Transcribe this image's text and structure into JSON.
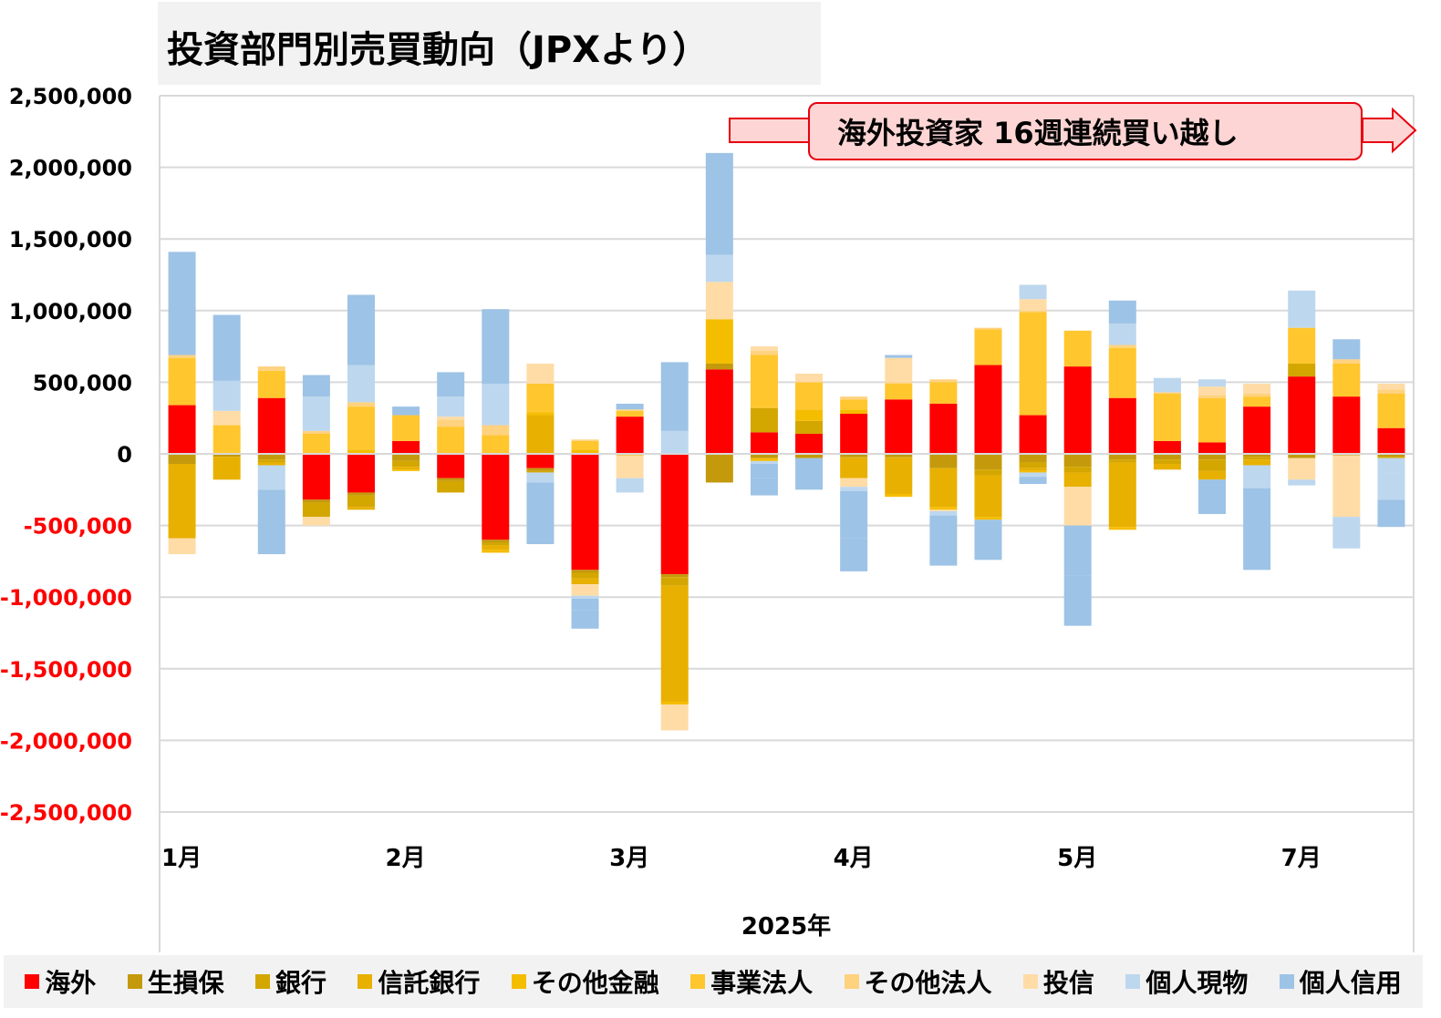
{
  "title": "投資部門別売買動向（JPXより）",
  "callout": "海外投資家 16週連続買い越し",
  "chart_data": {
    "type": "bar",
    "stacked": true,
    "xlabel": "2025年",
    "ylabel": "",
    "ylim": [
      -2500000,
      2500000
    ],
    "y_ticks": [
      "2,500,000",
      "2,000,000",
      "1,500,000",
      "1,000,000",
      "500,000",
      "0",
      "-500,000",
      "-1,000,000",
      "-1,500,000",
      "-2,000,000",
      "-2,500,000"
    ],
    "y_tick_values": [
      2500000,
      2000000,
      1500000,
      1000000,
      500000,
      0,
      -500000,
      -1000000,
      -1500000,
      -2000000,
      -2500000
    ],
    "negative_tick_color": "#ff0000",
    "grid": true,
    "legend_position": "bottom",
    "month_labels": [
      {
        "label": "1月",
        "week": 0
      },
      {
        "label": "2月",
        "week": 5
      },
      {
        "label": "3月",
        "week": 10
      },
      {
        "label": "4月",
        "week": 15
      },
      {
        "label": "5月",
        "week": 20
      },
      {
        "label": "7月",
        "week": 25
      }
    ],
    "week_count": 28,
    "series": [
      {
        "name": "海外",
        "color": "#ff0000",
        "values": [
          340000,
          0,
          390000,
          -320000,
          -270000,
          90000,
          -170000,
          -600000,
          -100000,
          -810000,
          260000,
          -840000,
          590000,
          150000,
          140000,
          280000,
          380000,
          350000,
          620000,
          270000,
          610000,
          390000,
          90000,
          80000,
          330000,
          540000,
          400000,
          180000
        ]
      },
      {
        "name": "生損保",
        "color": "#c49a0c",
        "values": [
          -70000,
          -20000,
          -40000,
          -20000,
          -20000,
          -50000,
          -20000,
          -20000,
          -20000,
          -20000,
          0,
          -20000,
          40000,
          -30000,
          -30000,
          -20000,
          -20000,
          -100000,
          -110000,
          -60000,
          -90000,
          -40000,
          -40000,
          -40000,
          -20000,
          -30000,
          -10000,
          -20000
        ]
      },
      {
        "name": "銀行",
        "color": "#d4a600",
        "values": [
          0,
          0,
          -20000,
          -100000,
          -80000,
          -40000,
          -80000,
          -20000,
          -10000,
          -40000,
          0,
          -60000,
          0,
          170000,
          90000,
          -10000,
          -10000,
          0,
          -40000,
          -40000,
          -40000,
          -20000,
          -30000,
          -80000,
          -20000,
          90000,
          0,
          -10000
        ]
      },
      {
        "name": "信託銀行",
        "color": "#e8b000",
        "values": [
          -520000,
          -160000,
          -20000,
          0,
          -20000,
          -20000,
          0,
          -30000,
          270000,
          -40000,
          -10000,
          -810000,
          0,
          0,
          0,
          -140000,
          -250000,
          -270000,
          -290000,
          -20000,
          -100000,
          -450000,
          -40000,
          -60000,
          -40000,
          0,
          0,
          0
        ]
      },
      {
        "name": "その他金融",
        "color": "#f5bd00",
        "values": [
          0,
          0,
          0,
          0,
          30000,
          -10000,
          0,
          -20000,
          20000,
          30000,
          0,
          -20000,
          310000,
          -20000,
          80000,
          30000,
          -20000,
          -20000,
          -20000,
          -10000,
          0,
          -20000,
          0,
          0,
          0,
          0,
          0,
          0
        ]
      },
      {
        "name": "事業法人",
        "color": "#ffc62e",
        "values": [
          330000,
          200000,
          190000,
          140000,
          300000,
          180000,
          190000,
          130000,
          200000,
          60000,
          40000,
          0,
          0,
          370000,
          190000,
          70000,
          110000,
          150000,
          250000,
          720000,
          250000,
          350000,
          330000,
          310000,
          70000,
          250000,
          230000,
          240000
        ]
      },
      {
        "name": "その他法人",
        "color": "#ffd27f",
        "values": [
          20000,
          0,
          30000,
          20000,
          30000,
          0,
          50000,
          70000,
          0,
          10000,
          10000,
          0,
          0,
          30000,
          0,
          20000,
          10000,
          20000,
          10000,
          10000,
          0,
          20000,
          10000,
          20000,
          20000,
          0,
          30000,
          30000
        ]
      },
      {
        "name": "投信",
        "color": "#ffdca6",
        "values": [
          -110000,
          100000,
          0,
          -60000,
          0,
          0,
          20000,
          0,
          140000,
          -80000,
          -160000,
          -180000,
          260000,
          30000,
          60000,
          -60000,
          170000,
          -10000,
          0,
          80000,
          -270000,
          0,
          0,
          60000,
          70000,
          -150000,
          -430000,
          40000
        ]
      },
      {
        "name": "個人現物",
        "color": "#bdd7ee",
        "values": [
          0,
          210000,
          -170000,
          240000,
          260000,
          0,
          140000,
          290000,
          -70000,
          -20000,
          0,
          160000,
          190000,
          -20000,
          0,
          -30000,
          0,
          -30000,
          0,
          100000,
          0,
          150000,
          100000,
          50000,
          -160000,
          260000,
          -220000,
          -100000
        ]
      },
      {
        "name": "個人信用",
        "color": "#9dc3e6",
        "values": [
          720000,
          460000,
          -450000,
          150000,
          490000,
          60000,
          170000,
          520000,
          -430000,
          -80000,
          40000,
          480000,
          710000,
          -100000,
          0,
          -330000,
          20000,
          -350000,
          -280000,
          -50000,
          -350000,
          160000,
          0,
          -240000,
          -570000,
          0,
          140000,
          -190000
        ]
      }
    ],
    "extra_negative": [
      {
        "week": 9,
        "segment": "個人信用",
        "value": -130000
      },
      {
        "week": 10,
        "segment": "個人現物",
        "value": -100000
      },
      {
        "week": 12,
        "segment": "生損保",
        "value": -200000
      },
      {
        "week": 13,
        "segment": "個人信用",
        "value": -120000
      },
      {
        "week": 14,
        "segment": "個人信用",
        "value": -220000
      },
      {
        "week": 15,
        "segment": "個人信用",
        "value": -230000
      },
      {
        "week": 19,
        "segment": "個人現物",
        "value": -30000
      },
      {
        "week": 20,
        "segment": "個人信用",
        "value": -350000
      },
      {
        "week": 25,
        "segment": "個人現物",
        "value": -40000
      },
      {
        "week": 27,
        "segment": "個人現物",
        "value": -190000
      }
    ]
  }
}
